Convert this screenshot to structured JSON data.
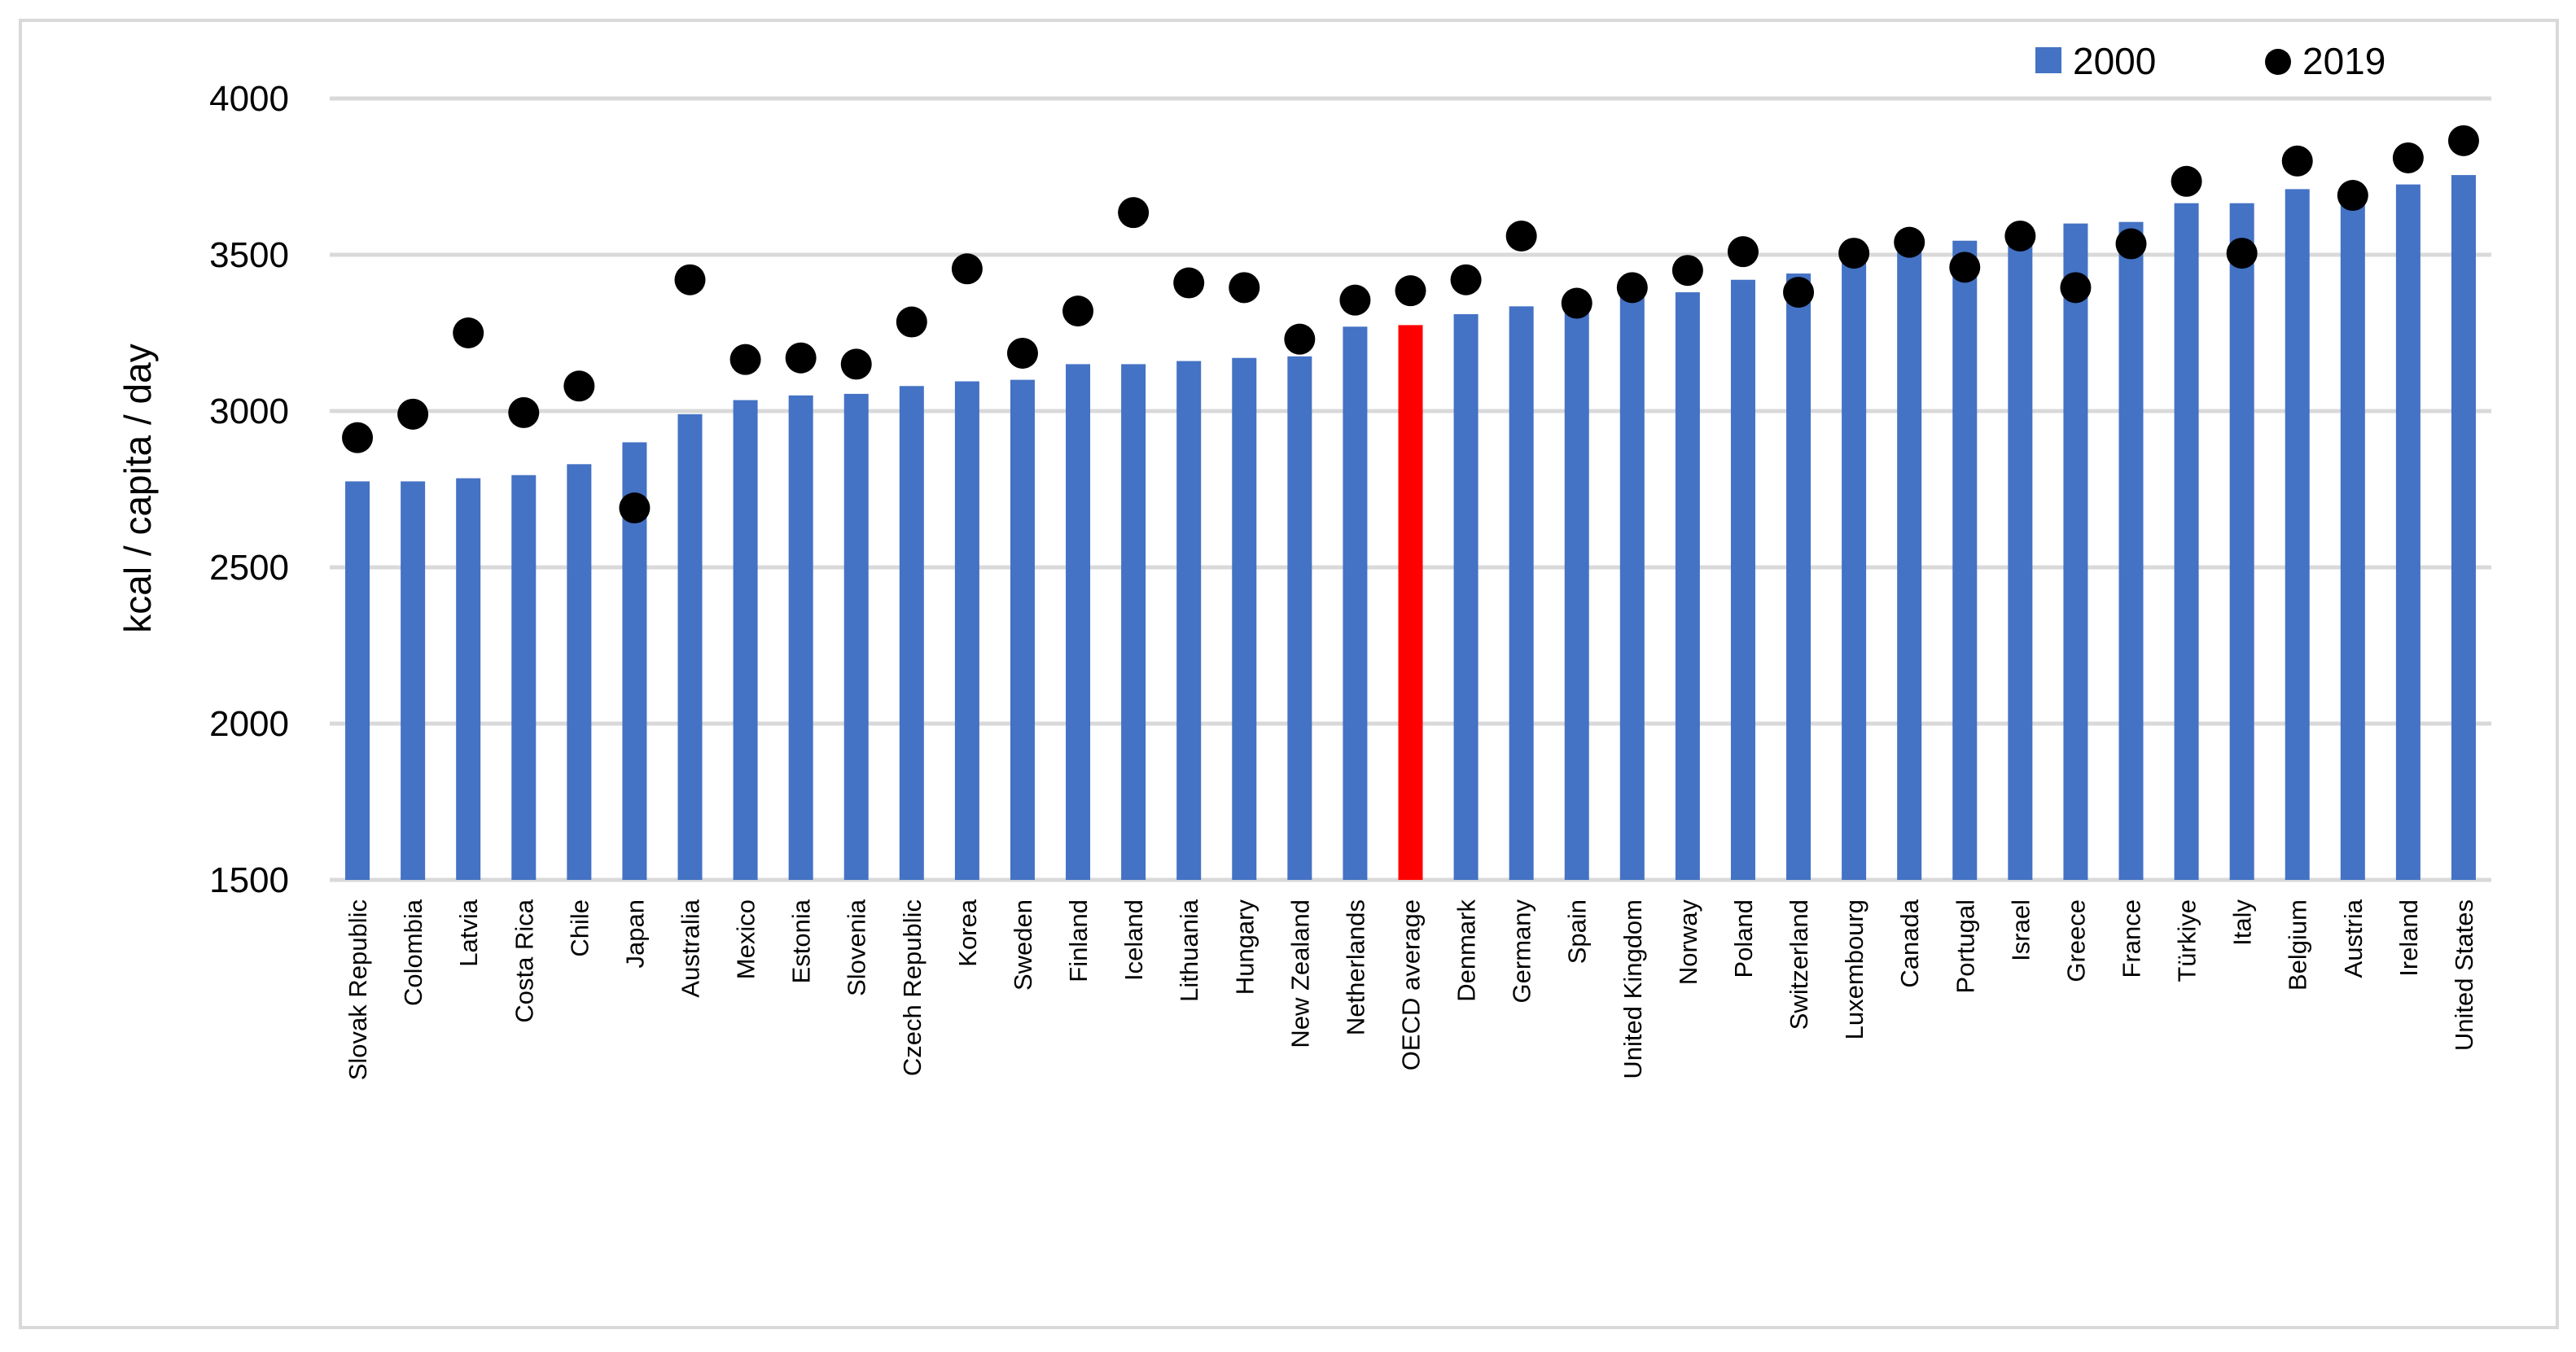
{
  "chart_data": {
    "type": "bar",
    "title": "",
    "xlabel": "",
    "ylabel": "kcal / capita / day",
    "ylim": [
      1500,
      4000
    ],
    "yticks": [
      1500,
      2000,
      2500,
      3000,
      3500,
      4000
    ],
    "grid": true,
    "legend_placement": "top-right",
    "colors": {
      "bar": "#4472C4",
      "highlight_bar": "#FF0000",
      "dot": "#000000",
      "grid": "#D9D9D9"
    },
    "highlight_category": "OECD average",
    "categories": [
      "Slovak Republic",
      "Colombia",
      "Latvia",
      "Costa Rica",
      "Chile",
      "Japan",
      "Australia",
      "Mexico",
      "Estonia",
      "Slovenia",
      "Czech Republic",
      "Korea",
      "Sweden",
      "Finland",
      "Iceland",
      "Lithuania",
      "Hungary",
      "New Zealand",
      "Netherlands",
      "OECD average",
      "Denmark",
      "Germany",
      "Spain",
      "United Kingdom",
      "Norway",
      "Poland",
      "Switzerland",
      "Luxembourg",
      "Canada",
      "Portugal",
      "Israel",
      "Greece",
      "France",
      "Türkiye",
      "Italy",
      "Belgium",
      "Austria",
      "Ireland",
      "United States"
    ],
    "series": [
      {
        "name": "2000",
        "type": "bar",
        "values": [
          2775,
          2775,
          2785,
          2795,
          2830,
          2900,
          2990,
          3035,
          3050,
          3055,
          3080,
          3095,
          3100,
          3150,
          3150,
          3160,
          3170,
          3175,
          3270,
          3275,
          3310,
          3335,
          3350,
          3390,
          3380,
          3420,
          3440,
          3490,
          3515,
          3545,
          3530,
          3600,
          3605,
          3665,
          3665,
          3710,
          3700,
          3725,
          3755
        ]
      },
      {
        "name": "2019",
        "type": "scatter",
        "values": [
          2915,
          2990,
          3250,
          2995,
          3080,
          2690,
          3420,
          3165,
          3170,
          3150,
          3285,
          3455,
          3185,
          3320,
          3635,
          3410,
          3395,
          3230,
          3355,
          3385,
          3420,
          3560,
          3345,
          3395,
          3450,
          3510,
          3380,
          3505,
          3540,
          3460,
          3560,
          3395,
          3535,
          3735,
          3505,
          3800,
          3690,
          3810,
          3865
        ]
      }
    ]
  }
}
